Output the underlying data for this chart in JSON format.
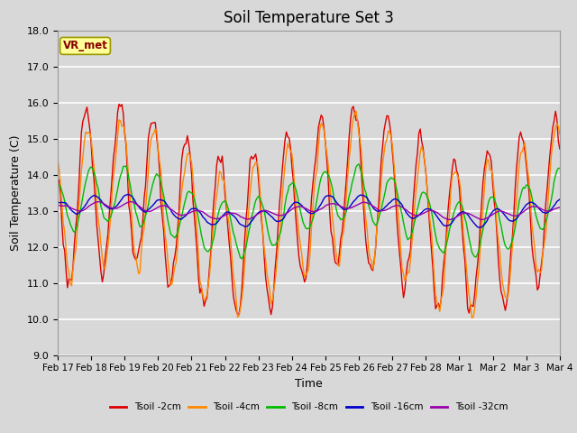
{
  "title": "Soil Temperature Set 3",
  "xlabel": "Time",
  "ylabel": "Soil Temperature (C)",
  "ylim": [
    9.0,
    18.0
  ],
  "yticks": [
    9.0,
    10.0,
    11.0,
    12.0,
    13.0,
    14.0,
    15.0,
    16.0,
    17.0,
    18.0
  ],
  "bg_color": "#d8d8d8",
  "series_colors": [
    "#dd0000",
    "#ff8800",
    "#00bb00",
    "#0000cc",
    "#9900aa"
  ],
  "series_labels": [
    "Tsoil -2cm",
    "Tsoil -4cm",
    "Tsoil -8cm",
    "Tsoil -16cm",
    "Tsoil -32cm"
  ],
  "legend_box_color": "#ffff99",
  "legend_box_edge": "#999900",
  "legend_text": "VR_met",
  "xtick_labels": [
    "Feb 17",
    "Feb 18",
    "Feb 19",
    "Feb 20",
    "Feb 21",
    "Feb 22",
    "Feb 23",
    "Feb 24",
    "Feb 25",
    "Feb 26",
    "Feb 27",
    "Feb 28",
    "Mar 1",
    "Mar 2",
    "Mar 3",
    "Mar 4"
  ],
  "title_fontsize": 12,
  "axis_label_fontsize": 9,
  "tick_fontsize": 8
}
